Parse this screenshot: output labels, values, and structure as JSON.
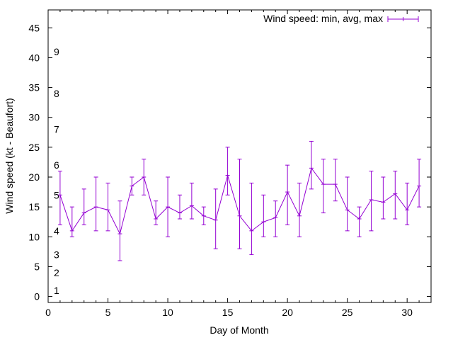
{
  "chart_data": {
    "type": "line",
    "title": "",
    "xlabel": "Day of Month",
    "ylabel": "Wind speed (kt - Beaufort)",
    "xlim": [
      0,
      32
    ],
    "ylim": [
      -1,
      48
    ],
    "xticks": [
      0,
      5,
      10,
      15,
      20,
      25,
      30
    ],
    "yticks": [
      0,
      5,
      10,
      15,
      20,
      25,
      30,
      35,
      40,
      45
    ],
    "grid": false,
    "legend_position": "top-right",
    "series": [
      {
        "name": "Wind speed: min, avg, max",
        "color": "#9400d3",
        "x": [
          1,
          2,
          3,
          4,
          5,
          6,
          7,
          8,
          9,
          10,
          11,
          12,
          13,
          14,
          15,
          16,
          17,
          18,
          19,
          20,
          21,
          22,
          23,
          24,
          25,
          26,
          27,
          28,
          29,
          30,
          31
        ],
        "avg": [
          17,
          11,
          14,
          15,
          14.5,
          10.5,
          18.5,
          20,
          13,
          15,
          14,
          15.2,
          13.5,
          12.8,
          20.3,
          13.5,
          11,
          12.5,
          13.2,
          17.5,
          13.5,
          21.5,
          18.8,
          18.8,
          14.5,
          13,
          16.2,
          15.8,
          17.2,
          14.5,
          18.5
        ],
        "min": [
          12,
          10,
          12,
          11,
          11,
          6,
          17,
          17,
          12,
          10,
          13,
          13,
          12,
          8,
          17,
          8,
          7,
          10,
          10,
          12,
          10,
          18,
          14,
          16,
          11,
          10,
          11,
          13,
          13,
          12,
          15
        ],
        "max": [
          21,
          15,
          18,
          20,
          19,
          16,
          20,
          23,
          16,
          20,
          17,
          19,
          15,
          18,
          25,
          23,
          19,
          17,
          16,
          22,
          19,
          26,
          23,
          23,
          20,
          15,
          21,
          20,
          21,
          19,
          23
        ]
      }
    ],
    "beaufort_labels": [
      {
        "label": "1",
        "value": 1
      },
      {
        "label": "2",
        "value": 4
      },
      {
        "label": "3",
        "value": 7
      },
      {
        "label": "4",
        "value": 11
      },
      {
        "label": "5",
        "value": 17
      },
      {
        "label": "6",
        "value": 22
      },
      {
        "label": "7",
        "value": 28
      },
      {
        "label": "8",
        "value": 34
      },
      {
        "label": "9",
        "value": 41
      }
    ]
  }
}
